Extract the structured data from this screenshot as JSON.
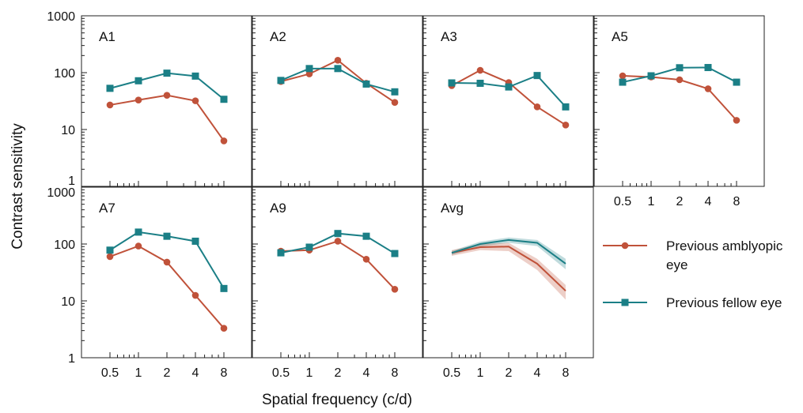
{
  "chart_data": {
    "type": "line",
    "ylabel": "Contrast sensitivity",
    "xlabel": "Spatial frequency (c/d)",
    "y_scale": "log",
    "ylim": [
      1,
      1000
    ],
    "x_scale": "log",
    "x": [
      0.5,
      1,
      2,
      4,
      8
    ],
    "x_tick_labels": [
      "0.5",
      "1",
      "2",
      "4",
      "8"
    ],
    "y_tick_labels": [
      "1",
      "10",
      "100",
      "1000"
    ],
    "legend_placement": "right",
    "legend": [
      {
        "label": "Previous amblyopic\neye",
        "line1": "Previous amblyopic",
        "line2": "eye",
        "marker": "circle"
      },
      {
        "label": "Previous fellow eye",
        "line1": "Previous fellow eye",
        "line2": "",
        "marker": "square"
      }
    ],
    "colors": {
      "amblyopic": "#c0523a",
      "fellow": "#1b7f86"
    },
    "panels": [
      {
        "name": "A1",
        "amblyopic": [
          27,
          33,
          40,
          32,
          6.3
        ],
        "fellow": [
          53,
          72,
          98,
          87,
          34
        ]
      },
      {
        "name": "A2",
        "amblyopic": [
          70,
          95,
          165,
          65,
          30
        ],
        "fellow": [
          73,
          118,
          118,
          63,
          46
        ]
      },
      {
        "name": "A3",
        "amblyopic": [
          59,
          110,
          67,
          25,
          12
        ],
        "fellow": [
          66,
          65,
          56,
          89,
          25
        ]
      },
      {
        "name": "A5",
        "amblyopic": [
          88,
          84,
          75,
          52,
          14.5
        ],
        "fellow": [
          68,
          88,
          122,
          123,
          68
        ]
      },
      {
        "name": "A7",
        "amblyopic": [
          60,
          92,
          48,
          12.5,
          3.3
        ],
        "fellow": [
          78,
          162,
          137,
          112,
          16.5
        ]
      },
      {
        "name": "A9",
        "amblyopic": [
          75,
          78,
          112,
          54,
          16
        ],
        "fellow": [
          70,
          88,
          153,
          137,
          68
        ]
      },
      {
        "name": "Avg",
        "amblyopic": [
          70,
          88,
          90,
          45,
          15
        ],
        "amblyopic_lower": [
          62,
          78,
          75,
          35,
          10.5
        ],
        "amblyopic_upper": [
          78,
          100,
          105,
          55,
          19
        ],
        "fellow": [
          70,
          100,
          118,
          105,
          45
        ],
        "fellow_lower": [
          64,
          90,
          105,
          92,
          36
        ],
        "fellow_upper": [
          76,
          110,
          130,
          118,
          55
        ]
      }
    ]
  }
}
